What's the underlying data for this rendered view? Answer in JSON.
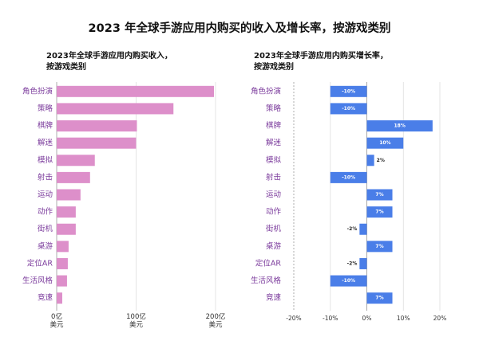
{
  "chart_data": [
    {
      "type": "bar",
      "orientation": "horizontal",
      "title": [
        "2023年全球手游应用内购买收入，",
        "按游戏类别"
      ],
      "categories": [
        "角色扮演",
        "策略",
        "棋牌",
        "解迷",
        "模拟",
        "射击",
        "运动",
        "动作",
        "街机",
        "桌游",
        "定位AR",
        "生活风格",
        "竞速"
      ],
      "values": [
        198,
        147,
        101,
        100,
        48,
        42,
        30,
        24,
        24,
        15,
        14,
        13,
        7
      ],
      "color": "#dd8fca",
      "xlim": [
        0,
        200
      ],
      "xticks": [
        {
          "value": 0,
          "label": "0亿\n美元"
        },
        {
          "value": 100,
          "label": "100亿\n美元"
        },
        {
          "value": 200,
          "label": "200亿\n美元"
        }
      ]
    },
    {
      "type": "bar",
      "orientation": "horizontal",
      "title": [
        "2023年全球手游应用内购买增长率，",
        "按游戏类别"
      ],
      "categories": [
        "角色扮演",
        "策略",
        "棋牌",
        "解迷",
        "模拟",
        "射击",
        "运动",
        "动作",
        "街机",
        "桌游",
        "定位AR",
        "生活风格",
        "竞速"
      ],
      "values": [
        -10,
        -10,
        18,
        10,
        2,
        -10,
        7,
        7,
        -2,
        7,
        -2,
        -10,
        7
      ],
      "value_labels": [
        "-10%",
        "-10%",
        "18%",
        "10%",
        "2%",
        "-10%",
        "7%",
        "7%",
        "-2%",
        "7%",
        "-2%",
        "-10%",
        "7%"
      ],
      "color": "#4a7ee8",
      "xlim": [
        -20,
        20
      ],
      "xticks": [
        {
          "value": -20,
          "label": "-20%"
        },
        {
          "value": -10,
          "label": "-10%"
        },
        {
          "value": 0,
          "label": "0%"
        },
        {
          "value": 10,
          "label": "10%"
        },
        {
          "value": 20,
          "label": "20%"
        }
      ]
    }
  ],
  "title": "2023 年全球手游应用内购买的收入及增长率，按游戏类别"
}
